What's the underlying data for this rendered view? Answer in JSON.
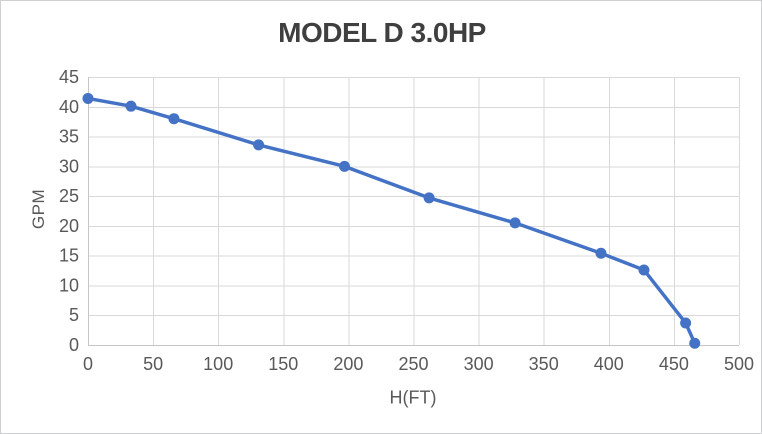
{
  "chart_data": {
    "type": "line",
    "title": "MODEL D 3.0HP",
    "xlabel": "H(FT)",
    "ylabel": "GPM",
    "xlim": [
      0,
      500
    ],
    "ylim": [
      0,
      45
    ],
    "x_ticks": [
      0,
      50,
      100,
      150,
      200,
      250,
      300,
      350,
      400,
      450,
      500
    ],
    "y_ticks": [
      0,
      5,
      10,
      15,
      20,
      25,
      30,
      35,
      40,
      45
    ],
    "grid": true,
    "legend": false,
    "series": [
      {
        "name": "GPM vs H(FT)",
        "x": [
          0,
          33,
          66,
          131,
          197,
          262,
          328,
          394,
          427,
          459,
          466
        ],
        "y": [
          41.4,
          40.1,
          38.0,
          33.6,
          30.0,
          24.7,
          20.5,
          15.4,
          12.6,
          3.7,
          0.3
        ],
        "marker": "circle"
      }
    ],
    "colors": {
      "line": "#4472C4",
      "marker": "#4472C4",
      "gridline": "#D9D9D9",
      "axis_line": "#C6C6C6",
      "tick_label": "#595959",
      "axis_title": "#595959",
      "title": "#3F3F3F"
    }
  }
}
